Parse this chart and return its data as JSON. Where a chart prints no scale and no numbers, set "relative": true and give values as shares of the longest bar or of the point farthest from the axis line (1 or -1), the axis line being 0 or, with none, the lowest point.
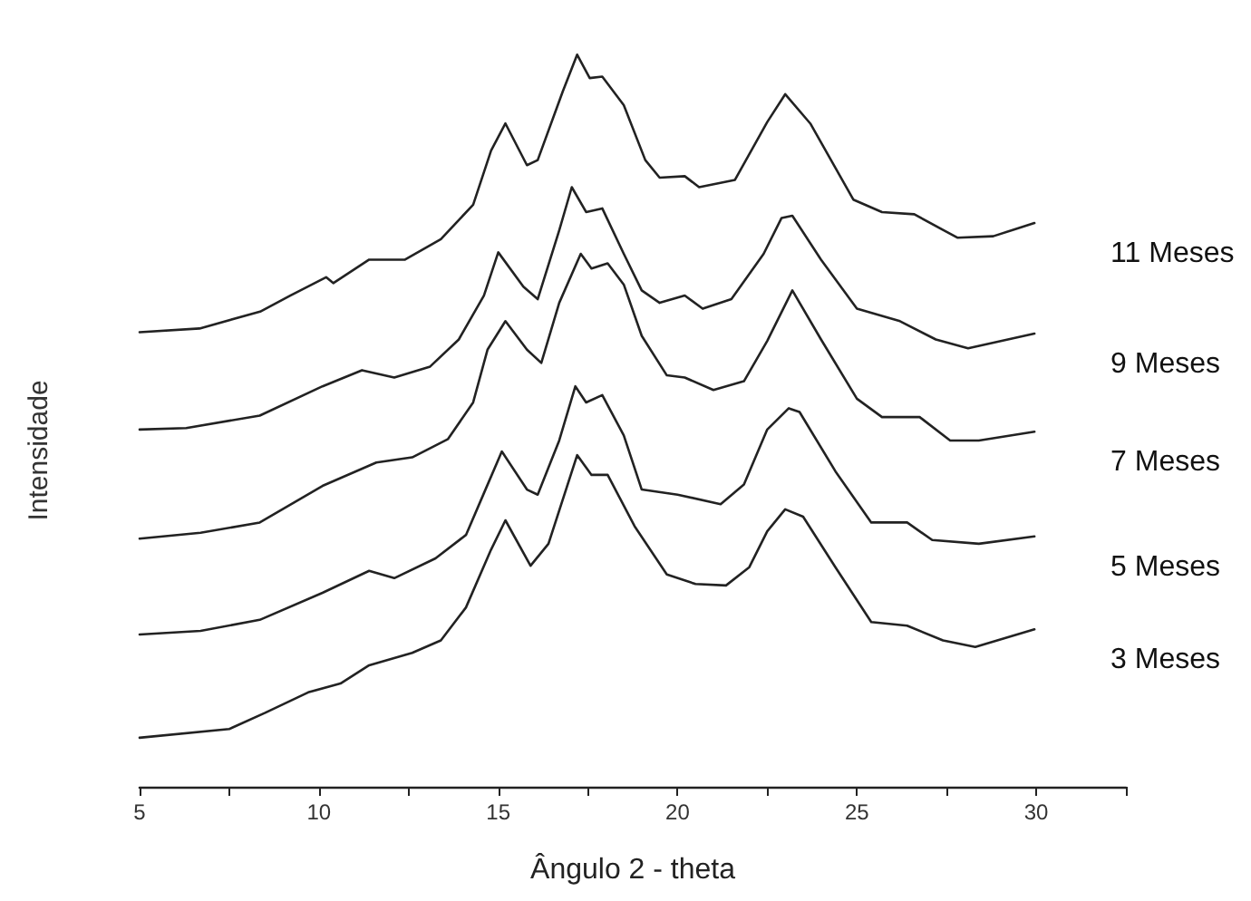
{
  "chart_data": {
    "type": "line",
    "xlabel": "Ângulo 2 - theta",
    "ylabel": "Intensidade",
    "relative": true,
    "tick_labels": "x",
    "grid": false,
    "legend": false,
    "marker": "none",
    "line_style": "solid",
    "xlim": [
      5,
      32.5
    ],
    "xticks": [
      5,
      {
        "value": 7.5,
        "label": null
      },
      10,
      {
        "value": 12.5,
        "label": null
      },
      15,
      {
        "value": 17.5,
        "label": null
      },
      20,
      {
        "value": 22.5,
        "label": null
      },
      25,
      {
        "value": 27.5,
        "label": null
      },
      30,
      {
        "value": 32.5,
        "label": null
      }
    ],
    "series": [
      {
        "name": "11 Meses",
        "color": "#222222",
        "x": [
          5,
          6.67,
          8.36,
          9.2,
          10.2,
          10.4,
          11.4,
          12.4,
          13.4,
          14.3,
          14.8,
          15.2,
          15.8,
          16.1,
          16.8,
          17.2,
          17.55,
          17.9,
          18.5,
          19.1,
          19.5,
          20.2,
          20.6,
          21.6,
          22.5,
          23.0,
          23.7,
          24.9,
          25.7,
          26.6,
          27.8,
          28.8,
          29.95
        ],
        "values": [
          0.621,
          0.626,
          0.649,
          0.671,
          0.696,
          0.688,
          0.72,
          0.72,
          0.748,
          0.795,
          0.869,
          0.906,
          0.849,
          0.856,
          0.95,
          1,
          0.968,
          0.97,
          0.931,
          0.856,
          0.832,
          0.834,
          0.819,
          0.829,
          0.908,
          0.946,
          0.906,
          0.802,
          0.785,
          0.782,
          0.75,
          0.752,
          0.77
        ]
      },
      {
        "name": "9 Meses",
        "color": "#222222",
        "x": [
          5,
          6.3,
          8.35,
          10.1,
          11.2,
          12.1,
          13.1,
          13.9,
          14.6,
          15.0,
          15.7,
          16.1,
          16.7,
          17.05,
          17.45,
          17.9,
          18.5,
          19.0,
          19.5,
          20.2,
          20.7,
          21.5,
          22.4,
          22.9,
          23.2,
          24.0,
          25.0,
          26.2,
          27.2,
          28.1,
          29.95
        ],
        "values": [
          0.488,
          0.49,
          0.507,
          0.547,
          0.569,
          0.559,
          0.574,
          0.611,
          0.671,
          0.73,
          0.683,
          0.666,
          0.76,
          0.819,
          0.785,
          0.79,
          0.728,
          0.678,
          0.661,
          0.671,
          0.653,
          0.666,
          0.728,
          0.777,
          0.78,
          0.72,
          0.653,
          0.636,
          0.611,
          0.599,
          0.619
        ]
      },
      {
        "name": "7 Meses",
        "color": "#222222",
        "x": [
          5,
          6.7,
          8.35,
          10.1,
          11.6,
          12.6,
          13.6,
          14.3,
          14.7,
          15.2,
          15.8,
          16.2,
          16.7,
          17.3,
          17.6,
          18.05,
          18.5,
          19.0,
          19.7,
          20.2,
          21.0,
          21.85,
          22.5,
          23.2,
          24.0,
          25.0,
          25.7,
          26.75,
          27.6,
          28.4,
          29.95
        ],
        "values": [
          0.339,
          0.347,
          0.361,
          0.411,
          0.443,
          0.45,
          0.475,
          0.525,
          0.597,
          0.636,
          0.597,
          0.579,
          0.661,
          0.728,
          0.708,
          0.715,
          0.686,
          0.616,
          0.562,
          0.559,
          0.542,
          0.554,
          0.609,
          0.678,
          0.611,
          0.53,
          0.505,
          0.505,
          0.473,
          0.473,
          0.485
        ]
      },
      {
        "name": "5 Meses",
        "color": "#222222",
        "x": [
          5,
          6.7,
          8.35,
          10.1,
          11.4,
          12.1,
          13.25,
          14.1,
          14.6,
          15.1,
          15.8,
          16.1,
          16.7,
          17.15,
          17.45,
          17.9,
          18.5,
          19.0,
          20.0,
          21.2,
          21.85,
          22.5,
          23.1,
          23.4,
          24.4,
          25.4,
          26.4,
          27.1,
          28.4,
          29.95
        ],
        "values": [
          0.208,
          0.213,
          0.228,
          0.265,
          0.295,
          0.285,
          0.312,
          0.344,
          0.401,
          0.458,
          0.406,
          0.399,
          0.473,
          0.547,
          0.525,
          0.535,
          0.48,
          0.406,
          0.399,
          0.386,
          0.413,
          0.488,
          0.517,
          0.512,
          0.431,
          0.361,
          0.361,
          0.337,
          0.332,
          0.342
        ]
      },
      {
        "name": "3 Meses",
        "color": "#222222",
        "x": [
          5,
          7.5,
          8.5,
          9.7,
          10.6,
          11.4,
          12.6,
          13.4,
          14.1,
          14.8,
          15.2,
          15.9,
          16.4,
          17.2,
          17.6,
          18.05,
          18.8,
          19.7,
          20.5,
          21.35,
          22.0,
          22.5,
          23.0,
          23.5,
          24.4,
          25.4,
          26.4,
          27.4,
          28.3,
          29.95
        ],
        "values": [
          0.067,
          0.079,
          0.101,
          0.129,
          0.141,
          0.166,
          0.183,
          0.2,
          0.245,
          0.324,
          0.364,
          0.302,
          0.332,
          0.453,
          0.426,
          0.426,
          0.356,
          0.29,
          0.277,
          0.275,
          0.3,
          0.349,
          0.379,
          0.369,
          0.3,
          0.225,
          0.22,
          0.2,
          0.191,
          0.215
        ]
      }
    ]
  }
}
